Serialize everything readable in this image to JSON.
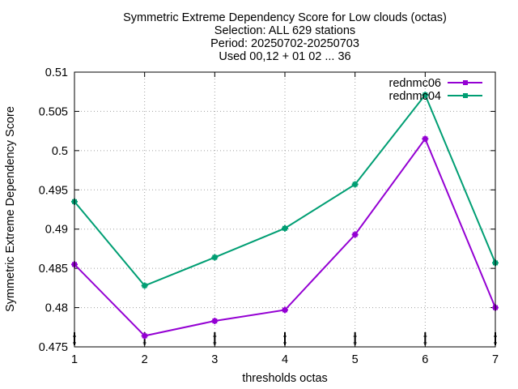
{
  "chart_data": {
    "type": "line",
    "title_lines": [
      "Symmetric Extreme Dependency Score  for Low clouds (octas)",
      "Selection: ALL    629 stations",
      "Period: 20250702-20250703",
      "Used 00,12 + 01 02 ... 36"
    ],
    "xlabel": "thresholds octas",
    "ylabel": "Symmetric Extreme Dependency Score",
    "x": [
      1,
      2,
      3,
      4,
      5,
      6,
      7
    ],
    "xlim": [
      1,
      7
    ],
    "ylim": [
      0.475,
      0.51
    ],
    "x_ticks": [
      "1",
      "2",
      "3",
      "4",
      "5",
      "6",
      "7"
    ],
    "y_ticks": [
      "0.475",
      "0.48",
      "0.485",
      "0.49",
      "0.495",
      "0.5",
      "0.505",
      "0.51"
    ],
    "grid": true,
    "legend_position": "top-right",
    "series": [
      {
        "name": "rednmc06",
        "color": "#9400d3",
        "values": [
          0.4855,
          0.4764,
          0.4783,
          0.4797,
          0.4893,
          0.5015,
          0.48
        ]
      },
      {
        "name": "rednmc04",
        "color": "#009e73",
        "values": [
          0.4935,
          0.4828,
          0.4864,
          0.4901,
          0.4957,
          0.5071,
          0.4857
        ]
      }
    ]
  }
}
